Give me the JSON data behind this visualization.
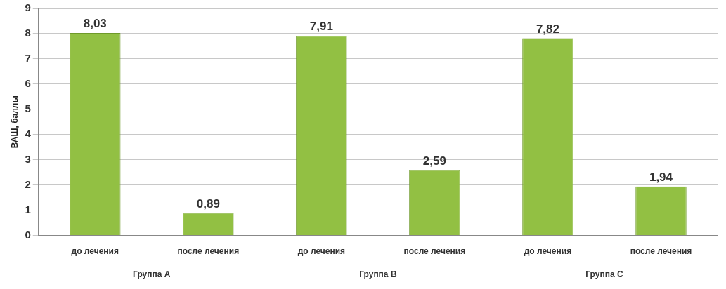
{
  "chart_data": {
    "type": "bar",
    "ylabel": "ВАШ, баллы",
    "categories": [
      "до лечения",
      "после лечения",
      "до лечения",
      "после лечения",
      "до лечения",
      "после лечения"
    ],
    "values": [
      8.03,
      0.89,
      7.91,
      2.59,
      7.82,
      1.94
    ],
    "value_labels": [
      "8,03",
      "0,89",
      "7,91",
      "2,59",
      "7,82",
      "1,94"
    ],
    "color": "#92c043",
    "ylim": [
      0,
      9
    ],
    "yticks": [
      0,
      1,
      2,
      3,
      4,
      5,
      6,
      7,
      8,
      9
    ],
    "grid": "y",
    "annotations": [
      "Группа A",
      "Группа B",
      "Группа C"
    ]
  }
}
